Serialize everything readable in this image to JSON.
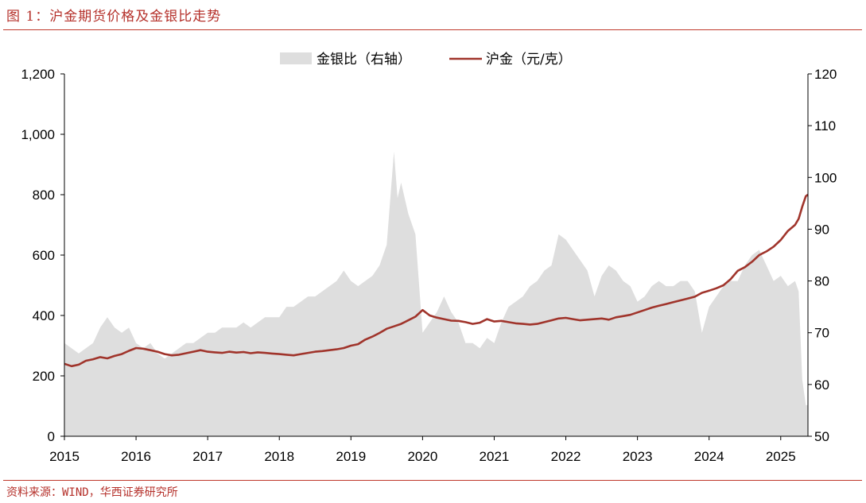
{
  "header": {
    "title": "图 1：沪金期货价格及金银比走势"
  },
  "footer": {
    "source": "资料来源：WIND，华西证券研究所"
  },
  "colors": {
    "ratio_fill": "#dedede",
    "gold_line": "#a0342b",
    "accent": "#c0392b",
    "axis": "#000000"
  },
  "chart_data": {
    "type": "area+line",
    "legend_position": "top-center",
    "grid": false,
    "x_ticks": [
      "2015",
      "2016",
      "2017",
      "2018",
      "2019",
      "2020",
      "2021",
      "2022",
      "2023",
      "2024",
      "2025"
    ],
    "x_range": [
      2015.0,
      2025.38
    ],
    "y_left": {
      "ticks": [
        "0",
        "200",
        "400",
        "600",
        "800",
        "1,000",
        "1,200"
      ],
      "range": [
        0,
        1200
      ]
    },
    "y_right": {
      "ticks": [
        "50",
        "60",
        "70",
        "80",
        "90",
        "100",
        "110",
        "120"
      ],
      "range": [
        50,
        120
      ]
    },
    "series": [
      {
        "name": "金银比（右轴）",
        "kind": "area",
        "axis": "right",
        "points": [
          [
            2015.0,
            68
          ],
          [
            2015.1,
            67
          ],
          [
            2015.2,
            66
          ],
          [
            2015.3,
            67
          ],
          [
            2015.4,
            68
          ],
          [
            2015.5,
            71
          ],
          [
            2015.6,
            73
          ],
          [
            2015.7,
            71
          ],
          [
            2015.8,
            70
          ],
          [
            2015.9,
            71
          ],
          [
            2016.0,
            68
          ],
          [
            2016.1,
            67
          ],
          [
            2016.2,
            68
          ],
          [
            2016.3,
            66
          ],
          [
            2016.4,
            65
          ],
          [
            2016.5,
            66
          ],
          [
            2016.6,
            67
          ],
          [
            2016.7,
            68
          ],
          [
            2016.8,
            68
          ],
          [
            2016.9,
            69
          ],
          [
            2017.0,
            70
          ],
          [
            2017.1,
            70
          ],
          [
            2017.2,
            71
          ],
          [
            2017.3,
            71
          ],
          [
            2017.4,
            71
          ],
          [
            2017.5,
            72
          ],
          [
            2017.6,
            71
          ],
          [
            2017.7,
            72
          ],
          [
            2017.8,
            73
          ],
          [
            2017.9,
            73
          ],
          [
            2018.0,
            73
          ],
          [
            2018.1,
            75
          ],
          [
            2018.2,
            75
          ],
          [
            2018.3,
            76
          ],
          [
            2018.4,
            77
          ],
          [
            2018.5,
            77
          ],
          [
            2018.6,
            78
          ],
          [
            2018.7,
            79
          ],
          [
            2018.8,
            80
          ],
          [
            2018.9,
            82
          ],
          [
            2019.0,
            80
          ],
          [
            2019.1,
            79
          ],
          [
            2019.2,
            80
          ],
          [
            2019.3,
            81
          ],
          [
            2019.4,
            83
          ],
          [
            2019.5,
            87
          ],
          [
            2019.6,
            105
          ],
          [
            2019.65,
            96
          ],
          [
            2019.7,
            99
          ],
          [
            2019.8,
            93
          ],
          [
            2019.9,
            89
          ],
          [
            2020.0,
            70
          ],
          [
            2020.1,
            72
          ],
          [
            2020.2,
            74
          ],
          [
            2020.3,
            77
          ],
          [
            2020.4,
            74
          ],
          [
            2020.5,
            72
          ],
          [
            2020.6,
            68
          ],
          [
            2020.7,
            68
          ],
          [
            2020.8,
            67
          ],
          [
            2020.9,
            69
          ],
          [
            2021.0,
            68
          ],
          [
            2021.1,
            72
          ],
          [
            2021.2,
            75
          ],
          [
            2021.3,
            76
          ],
          [
            2021.4,
            77
          ],
          [
            2021.5,
            79
          ],
          [
            2021.6,
            80
          ],
          [
            2021.7,
            82
          ],
          [
            2021.8,
            83
          ],
          [
            2021.9,
            89
          ],
          [
            2022.0,
            88
          ],
          [
            2022.1,
            86
          ],
          [
            2022.2,
            84
          ],
          [
            2022.3,
            82
          ],
          [
            2022.4,
            77
          ],
          [
            2022.5,
            81
          ],
          [
            2022.6,
            83
          ],
          [
            2022.7,
            82
          ],
          [
            2022.8,
            80
          ],
          [
            2022.9,
            79
          ],
          [
            2023.0,
            76
          ],
          [
            2023.1,
            77
          ],
          [
            2023.2,
            79
          ],
          [
            2023.3,
            80
          ],
          [
            2023.4,
            79
          ],
          [
            2023.5,
            79
          ],
          [
            2023.6,
            80
          ],
          [
            2023.7,
            80
          ],
          [
            2023.8,
            78
          ],
          [
            2023.9,
            70
          ],
          [
            2024.0,
            75
          ],
          [
            2024.1,
            77
          ],
          [
            2024.2,
            79
          ],
          [
            2024.3,
            80
          ],
          [
            2024.4,
            80
          ],
          [
            2024.5,
            83
          ],
          [
            2024.6,
            85
          ],
          [
            2024.7,
            86
          ],
          [
            2024.8,
            83
          ],
          [
            2024.9,
            80
          ],
          [
            2025.0,
            81
          ],
          [
            2025.1,
            79
          ],
          [
            2025.2,
            80
          ],
          [
            2025.25,
            78
          ],
          [
            2025.3,
            61
          ],
          [
            2025.35,
            56
          ],
          [
            2025.38,
            56
          ]
        ]
      },
      {
        "name": "沪金（元/克）",
        "kind": "line",
        "axis": "left",
        "points": [
          [
            2015.0,
            240
          ],
          [
            2015.1,
            232
          ],
          [
            2015.2,
            237
          ],
          [
            2015.3,
            250
          ],
          [
            2015.4,
            255
          ],
          [
            2015.5,
            262
          ],
          [
            2015.6,
            258
          ],
          [
            2015.7,
            266
          ],
          [
            2015.8,
            272
          ],
          [
            2015.9,
            283
          ],
          [
            2016.0,
            292
          ],
          [
            2016.1,
            290
          ],
          [
            2016.2,
            285
          ],
          [
            2016.3,
            280
          ],
          [
            2016.4,
            272
          ],
          [
            2016.5,
            268
          ],
          [
            2016.6,
            270
          ],
          [
            2016.7,
            275
          ],
          [
            2016.8,
            280
          ],
          [
            2016.9,
            285
          ],
          [
            2017.0,
            280
          ],
          [
            2017.1,
            278
          ],
          [
            2017.2,
            276
          ],
          [
            2017.3,
            280
          ],
          [
            2017.4,
            277
          ],
          [
            2017.5,
            279
          ],
          [
            2017.6,
            275
          ],
          [
            2017.7,
            278
          ],
          [
            2017.8,
            276
          ],
          [
            2017.9,
            274
          ],
          [
            2018.0,
            272
          ],
          [
            2018.1,
            270
          ],
          [
            2018.2,
            268
          ],
          [
            2018.3,
            272
          ],
          [
            2018.4,
            276
          ],
          [
            2018.5,
            280
          ],
          [
            2018.6,
            282
          ],
          [
            2018.7,
            285
          ],
          [
            2018.8,
            288
          ],
          [
            2018.9,
            292
          ],
          [
            2019.0,
            300
          ],
          [
            2019.1,
            305
          ],
          [
            2019.2,
            320
          ],
          [
            2019.3,
            330
          ],
          [
            2019.4,
            342
          ],
          [
            2019.5,
            356
          ],
          [
            2019.6,
            364
          ],
          [
            2019.7,
            372
          ],
          [
            2019.8,
            384
          ],
          [
            2019.9,
            396
          ],
          [
            2020.0,
            418
          ],
          [
            2020.1,
            400
          ],
          [
            2020.2,
            393
          ],
          [
            2020.3,
            388
          ],
          [
            2020.4,
            383
          ],
          [
            2020.5,
            382
          ],
          [
            2020.6,
            378
          ],
          [
            2020.7,
            372
          ],
          [
            2020.8,
            376
          ],
          [
            2020.9,
            388
          ],
          [
            2021.0,
            380
          ],
          [
            2021.1,
            382
          ],
          [
            2021.2,
            378
          ],
          [
            2021.3,
            374
          ],
          [
            2021.4,
            372
          ],
          [
            2021.5,
            370
          ],
          [
            2021.6,
            372
          ],
          [
            2021.7,
            378
          ],
          [
            2021.8,
            384
          ],
          [
            2021.9,
            390
          ],
          [
            2022.0,
            392
          ],
          [
            2022.1,
            388
          ],
          [
            2022.2,
            384
          ],
          [
            2022.3,
            386
          ],
          [
            2022.4,
            388
          ],
          [
            2022.5,
            390
          ],
          [
            2022.6,
            386
          ],
          [
            2022.7,
            394
          ],
          [
            2022.8,
            398
          ],
          [
            2022.9,
            402
          ],
          [
            2023.0,
            410
          ],
          [
            2023.1,
            418
          ],
          [
            2023.2,
            426
          ],
          [
            2023.3,
            432
          ],
          [
            2023.4,
            438
          ],
          [
            2023.5,
            444
          ],
          [
            2023.6,
            450
          ],
          [
            2023.7,
            456
          ],
          [
            2023.8,
            462
          ],
          [
            2023.9,
            475
          ],
          [
            2024.0,
            482
          ],
          [
            2024.1,
            490
          ],
          [
            2024.2,
            500
          ],
          [
            2024.3,
            520
          ],
          [
            2024.4,
            548
          ],
          [
            2024.5,
            560
          ],
          [
            2024.6,
            578
          ],
          [
            2024.7,
            600
          ],
          [
            2024.8,
            612
          ],
          [
            2024.9,
            628
          ],
          [
            2025.0,
            650
          ],
          [
            2025.1,
            680
          ],
          [
            2025.2,
            700
          ],
          [
            2025.25,
            720
          ],
          [
            2025.3,
            760
          ],
          [
            2025.35,
            795
          ],
          [
            2025.38,
            800
          ]
        ]
      }
    ]
  }
}
